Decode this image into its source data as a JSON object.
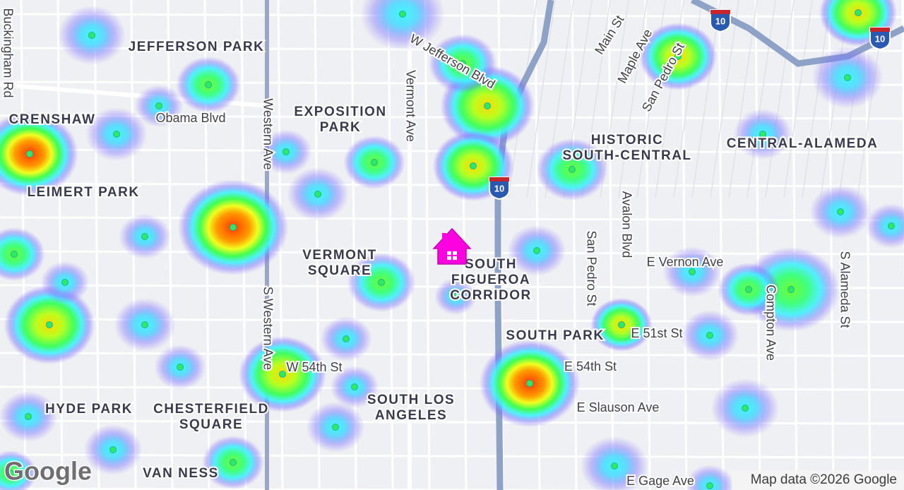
{
  "neighborhoods": [
    [
      "JEFFERSON PARK"
    ],
    [
      "CRENSHAW"
    ],
    [
      "LEIMERT PARK"
    ],
    [
      "EXPOSITION",
      "PARK"
    ],
    [
      "VERMONT",
      "SQUARE"
    ],
    [
      "SOUTH",
      "FIGUEROA",
      "CORRIDOR"
    ],
    [
      "HISTORIC",
      "SOUTH-CENTRAL"
    ],
    [
      "CENTRAL-ALAMEDA"
    ],
    [
      "SOUTH PARK"
    ],
    [
      "SOUTH LOS",
      "ANGELES"
    ],
    [
      "HYDE PARK"
    ],
    [
      "CHESTERFIELD",
      "SQUARE"
    ],
    [
      "VAN NESS"
    ]
  ],
  "streets": [
    "W Jefferson Blvd",
    "Obama Blvd",
    "Vermont Ave",
    "Western Ave",
    "S Western Ave",
    "Main St",
    "Maple Ave",
    "San Pedro St",
    "Avalon Blvd",
    "San Pedro St",
    "E Vernon Ave",
    "Compton Ave",
    "S Alameda St",
    "E 51st St",
    "E 54th St",
    "W 54th St",
    "E Slauson Ave",
    "E Gage Ave",
    "Buckingham Rd"
  ],
  "highway_shields": [
    "10",
    "10",
    "10"
  ],
  "attribution": "Map data ©2026 Google",
  "logo": "Google"
}
